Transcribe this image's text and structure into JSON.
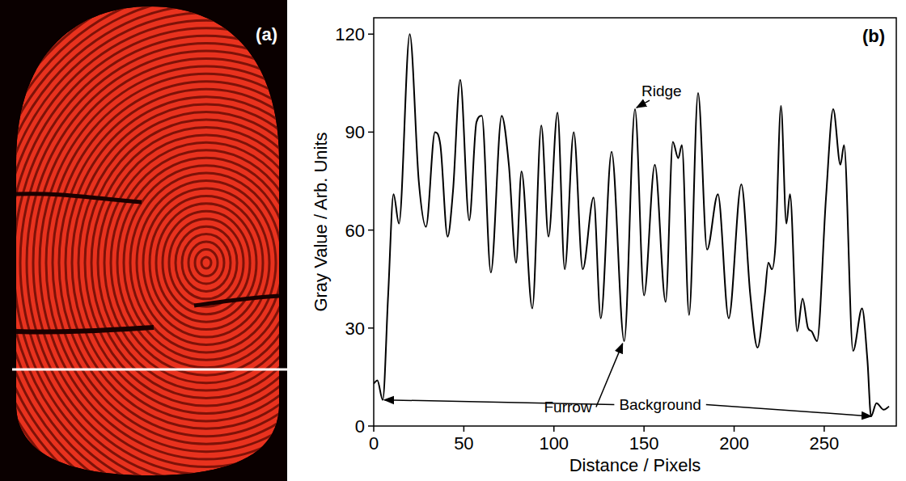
{
  "image_panel": {
    "label": "(a)"
  },
  "chart_data": {
    "type": "line",
    "panel_label": "(b)",
    "x_label": "Distance / Pixels",
    "y_label": "Gray Value / Arb. Units",
    "color": "#000000",
    "x": [
      0,
      2,
      5,
      8,
      11,
      14,
      20,
      25,
      29,
      34,
      37,
      41,
      44,
      48,
      53,
      57,
      60,
      65,
      71,
      75,
      79,
      82,
      88,
      93,
      97,
      102,
      106,
      111,
      116,
      122,
      126,
      132,
      139,
      145,
      150,
      156,
      162,
      166,
      169,
      171,
      175,
      180,
      185,
      191,
      197,
      204,
      209,
      213,
      217,
      219,
      221,
      223,
      226,
      229,
      231,
      235,
      238,
      241,
      243,
      246,
      251,
      255,
      259,
      261,
      266,
      271,
      274,
      276,
      279,
      283,
      286
    ],
    "values": [
      13,
      14,
      8,
      40,
      71,
      62,
      120,
      75,
      61,
      90,
      86,
      58,
      72,
      106,
      63,
      93,
      95,
      47,
      95,
      80,
      50,
      78,
      36,
      92,
      58,
      96,
      48,
      90,
      48,
      70,
      33,
      84,
      26,
      97,
      40,
      80,
      38,
      87,
      82,
      86,
      34,
      102,
      54,
      71,
      33,
      74,
      40,
      24,
      40,
      50,
      48,
      56,
      98,
      62,
      71,
      29,
      39,
      30,
      29,
      26,
      70,
      97,
      80,
      86,
      23,
      36,
      20,
      3,
      7,
      5,
      6
    ],
    "xlim": [
      0,
      290
    ],
    "ylim": [
      0,
      125
    ],
    "xticks": [
      0,
      50,
      100,
      150,
      200,
      250
    ],
    "yticks": [
      0,
      30,
      60,
      90,
      120
    ],
    "grid": false,
    "annotations": [
      {
        "text": "Ridge",
        "x": 145,
        "y": 97
      },
      {
        "text": "Furrow",
        "x": 139,
        "y": 26
      },
      {
        "text": "Background",
        "points": [
          [
            5,
            8
          ],
          [
            277,
            3
          ]
        ]
      }
    ]
  }
}
